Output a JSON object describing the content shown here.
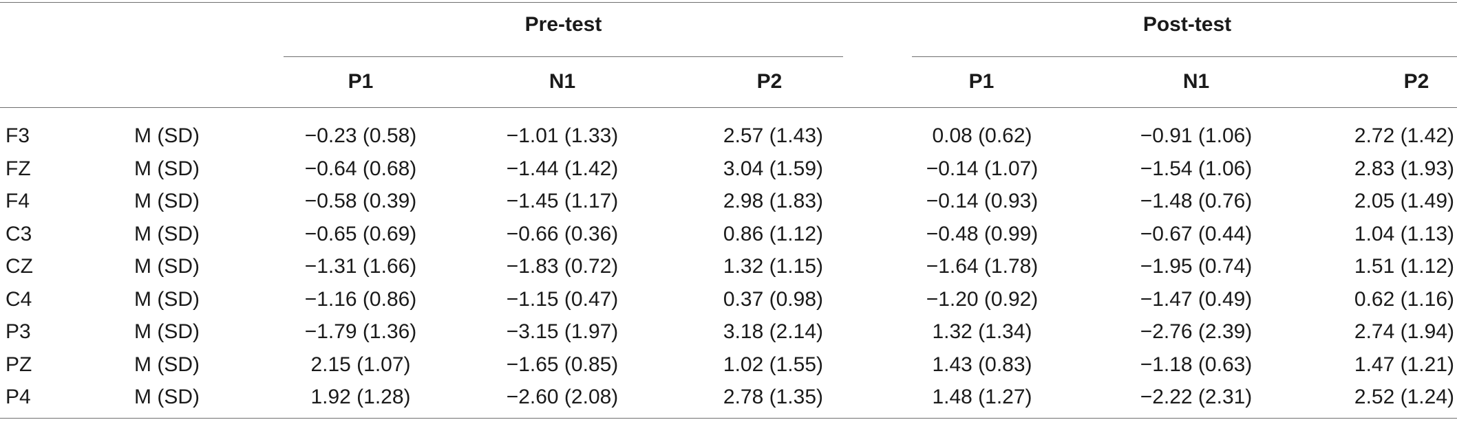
{
  "table": {
    "group_headers": [
      "Pre-test",
      "Post-test"
    ],
    "sub_headers": [
      "P1",
      "N1",
      "P2",
      "P1",
      "N1",
      "P2"
    ],
    "rows": [
      {
        "electrode": "F3",
        "stat": "M (SD)",
        "values": [
          "−0.23 (0.58)",
          "−1.01 (1.33)",
          "2.57 (1.43)",
          "0.08 (0.62)",
          "−0.91 (1.06)",
          "2.72 (1.42)"
        ]
      },
      {
        "electrode": "FZ",
        "stat": "M (SD)",
        "values": [
          "−0.64 (0.68)",
          "−1.44 (1.42)",
          "3.04 (1.59)",
          "−0.14 (1.07)",
          "−1.54 (1.06)",
          "2.83 (1.93)"
        ]
      },
      {
        "electrode": "F4",
        "stat": "M (SD)",
        "values": [
          "−0.58 (0.39)",
          "−1.45 (1.17)",
          "2.98 (1.83)",
          "−0.14 (0.93)",
          "−1.48 (0.76)",
          "2.05 (1.49)"
        ]
      },
      {
        "electrode": "C3",
        "stat": "M (SD)",
        "values": [
          "−0.65 (0.69)",
          "−0.66 (0.36)",
          "0.86 (1.12)",
          "−0.48 (0.99)",
          "−0.67 (0.44)",
          "1.04 (1.13)"
        ]
      },
      {
        "electrode": "CZ",
        "stat": "M (SD)",
        "values": [
          "−1.31 (1.66)",
          "−1.83 (0.72)",
          "1.32 (1.15)",
          "−1.64 (1.78)",
          "−1.95 (0.74)",
          "1.51 (1.12)"
        ]
      },
      {
        "electrode": "C4",
        "stat": "M (SD)",
        "values": [
          "−1.16 (0.86)",
          "−1.15 (0.47)",
          "0.37 (0.98)",
          "−1.20 (0.92)",
          "−1.47 (0.49)",
          "0.62 (1.16)"
        ]
      },
      {
        "electrode": "P3",
        "stat": "M (SD)",
        "values": [
          "−1.79 (1.36)",
          "−3.15 (1.97)",
          "3.18 (2.14)",
          "1.32 (1.34)",
          "−2.76 (2.39)",
          "2.74 (1.94)"
        ]
      },
      {
        "electrode": "PZ",
        "stat": "M (SD)",
        "values": [
          "2.15 (1.07)",
          "−1.65 (0.85)",
          "1.02 (1.55)",
          "1.43 (0.83)",
          "−1.18 (0.63)",
          "1.47 (1.21)"
        ]
      },
      {
        "electrode": "P4",
        "stat": "M (SD)",
        "values": [
          "1.92 (1.28)",
          "−2.60 (2.08)",
          "2.78 (1.35)",
          "1.48 (1.27)",
          "−2.22 (2.31)",
          "2.52 (1.24)"
        ]
      }
    ]
  }
}
